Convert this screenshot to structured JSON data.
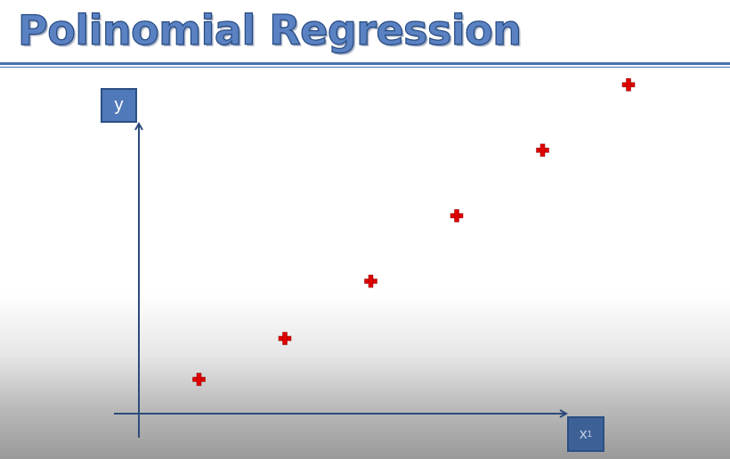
{
  "slide": {
    "title": "Polinomial Regression",
    "y_axis_label": "y",
    "x_axis_label": "x",
    "x_axis_subscript": "1",
    "colors": {
      "title": "#5a82c2",
      "axis": "#2b4a7a",
      "label_box": "#4f79b8",
      "points": "#e00000"
    }
  },
  "chart_data": {
    "type": "scatter",
    "marker": "plus",
    "xlabel": "x1",
    "ylabel": "y",
    "x": [
      1,
      2,
      3,
      4,
      5,
      6
    ],
    "y": [
      1,
      2,
      3.4,
      5,
      6.6,
      8.2
    ]
  }
}
